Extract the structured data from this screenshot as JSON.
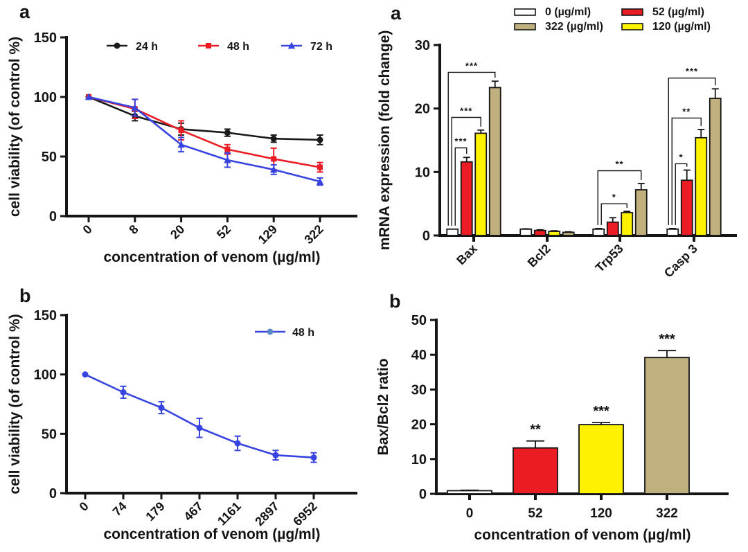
{
  "figure": {
    "background": "#ffffff",
    "text_color": "#141414"
  },
  "charts": [
    {
      "panel_label": "a",
      "type": "line",
      "ylabel": "cell viability (of control %)",
      "xlabel": "concentration of venom (µg/ml)",
      "categories": [
        "0",
        "8",
        "20",
        "52",
        "129",
        "322"
      ],
      "yticks": [
        0,
        50,
        100,
        150
      ],
      "ylim": [
        0,
        150
      ],
      "legend_position": "top-inside",
      "grid": false,
      "series": [
        {
          "name": "24 h",
          "color": "#1a1a1a",
          "marker": "circle",
          "values": [
            100,
            84,
            73,
            70,
            65,
            64
          ],
          "errors": [
            1,
            4,
            5,
            3,
            3,
            4
          ]
        },
        {
          "name": "48 h",
          "color": "#ec1c24",
          "marker": "square",
          "values": [
            100,
            90,
            72,
            56,
            48,
            41
          ],
          "errors": [
            1,
            8,
            8,
            4,
            9,
            4
          ]
        },
        {
          "name": "72 h",
          "color": "#3844e0",
          "marker": "triangle",
          "values": [
            100,
            91,
            60,
            47,
            39,
            29
          ],
          "errors": [
            1,
            7,
            6,
            6,
            4,
            3
          ]
        }
      ]
    },
    {
      "panel_label": "b",
      "type": "line",
      "ylabel": "cell viability (of control %)",
      "xlabel": "concentration of venom (µg/ml)",
      "categories": [
        "0",
        "74",
        "179",
        "467",
        "1161",
        "2897",
        "6952"
      ],
      "yticks": [
        0,
        50,
        100,
        150
      ],
      "ylim": [
        0,
        150
      ],
      "legend_position": "top-right-inside",
      "grid": false,
      "series": [
        {
          "name": "48 h",
          "color": "#3844e0",
          "marker": "circle",
          "legend_marker_color": "#5a87c5",
          "values": [
            100,
            85,
            72,
            55,
            42,
            32,
            30
          ],
          "errors": [
            0,
            5,
            5,
            8,
            6,
            4,
            4
          ]
        }
      ]
    },
    {
      "panel_label": "a",
      "type": "bar",
      "ylabel": "mRNA expression (fold change)",
      "xlabel": "",
      "categories": [
        "Bax",
        "Bcl2",
        "Trp53",
        "Casp 3"
      ],
      "yticks": [
        0,
        10,
        20,
        30
      ],
      "ylim": [
        0,
        30
      ],
      "legend_position": "top",
      "grid": false,
      "legend": [
        {
          "label": "0 (µg/ml)",
          "color": "#ffffff"
        },
        {
          "label": "52 (µg/ml)",
          "color": "#ec1c24"
        },
        {
          "label": "322 (µg/ml)",
          "color": "#bfb07d"
        },
        {
          "label": "120 (µg/ml)",
          "color": "#fff200"
        }
      ],
      "series": [
        {
          "name": "0 (µg/ml)",
          "color": "#ffffff",
          "values": [
            1,
            1,
            1,
            1
          ],
          "errors": [
            0,
            0.05,
            0.1,
            0.1
          ]
        },
        {
          "name": "52 (µg/ml)",
          "color": "#ec1c24",
          "values": [
            11.6,
            0.8,
            2.1,
            8.7
          ],
          "errors": [
            0.7,
            0.1,
            0.7,
            1.6
          ]
        },
        {
          "name": "120 (µg/ml)",
          "color": "#fff200",
          "values": [
            16.1,
            0.65,
            3.6,
            15.4
          ],
          "errors": [
            0.5,
            0.1,
            0.2,
            1.3
          ]
        },
        {
          "name": "322 (µg/ml)",
          "color": "#bfb07d",
          "values": [
            23.3,
            0.5,
            7.2,
            21.6
          ],
          "errors": [
            1.0,
            0.08,
            1.0,
            1.5
          ]
        }
      ],
      "significance": [
        {
          "category": "Bax",
          "from": 0,
          "to": 1,
          "label": "***",
          "height": 13.8
        },
        {
          "category": "Bax",
          "from": 0,
          "to": 2,
          "label": "***",
          "height": 18.6
        },
        {
          "category": "Bax",
          "from": 0,
          "to": 3,
          "label": "***",
          "height": 25.7
        },
        {
          "category": "Trp53",
          "from": 0,
          "to": 2,
          "label": "*",
          "height": 5.0
        },
        {
          "category": "Trp53",
          "from": 0,
          "to": 3,
          "label": "**",
          "height": 10.2
        },
        {
          "category": "Casp 3",
          "from": 0,
          "to": 1,
          "label": "*",
          "height": 11.3
        },
        {
          "category": "Casp 3",
          "from": 0,
          "to": 2,
          "label": "**",
          "height": 18.5
        },
        {
          "category": "Casp 3",
          "from": 0,
          "to": 3,
          "label": "***",
          "height": 24.8
        }
      ]
    },
    {
      "panel_label": "b",
      "type": "bar",
      "ylabel": "Bax/Bcl2 ratio",
      "xlabel": "concentration of venom (µg/ml)",
      "categories": [
        "0",
        "52",
        "120",
        "322"
      ],
      "yticks": [
        0,
        10,
        20,
        30,
        40,
        50
      ],
      "ylim": [
        0,
        50
      ],
      "grid": false,
      "values": [
        0.9,
        13.2,
        19.9,
        39.2
      ],
      "errors": [
        0.15,
        2.0,
        0.6,
        2.0
      ],
      "colors": [
        "#ffffff",
        "#ec1c24",
        "#fff200",
        "#bfb07d"
      ],
      "annotations": [
        "",
        "**",
        "***",
        "***"
      ]
    }
  ]
}
